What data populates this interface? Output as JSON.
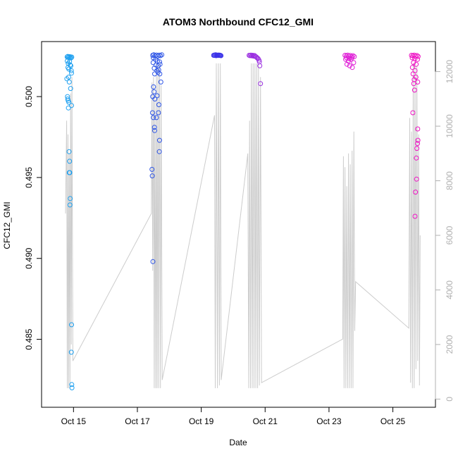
{
  "chart_data": {
    "type": "scatter",
    "title": "ATOM3 Northbound CFC12_GMI",
    "xlabel": "Date",
    "ylabel": "CFC12_GMI",
    "xlim": [
      "2016-10-14 00:00",
      "2016-10-26 08:00"
    ],
    "ylim": [
      0.4808,
      0.5034
    ],
    "y2lim": [
      -300,
      13100
    ],
    "x_ticks": [
      {
        "label": "Oct 15",
        "date": "2016-10-15"
      },
      {
        "label": "Oct 17",
        "date": "2016-10-17"
      },
      {
        "label": "Oct 19",
        "date": "2016-10-19"
      },
      {
        "label": "Oct 21",
        "date": "2016-10-21"
      },
      {
        "label": "Oct 23",
        "date": "2016-10-23"
      },
      {
        "label": "Oct 25",
        "date": "2016-10-25"
      }
    ],
    "y_ticks": [
      "0.485",
      "0.490",
      "0.495",
      "0.500"
    ],
    "y_tick_values": [
      0.485,
      0.49,
      0.495,
      0.5
    ],
    "y2_ticks": [
      "0",
      "2000",
      "4000",
      "6000",
      "8000",
      "10000",
      "12000"
    ],
    "y2_tick_values": [
      0,
      2000,
      4000,
      6000,
      8000,
      10000,
      12000
    ],
    "series": [
      {
        "color": "#1ea0f0",
        "points": [
          [
            "2016-10-14 19:12",
            0.50245
          ],
          [
            "2016-10-14 19:40",
            0.50248
          ],
          [
            "2016-10-14 20:10",
            0.50242
          ],
          [
            "2016-10-14 20:40",
            0.50247
          ],
          [
            "2016-10-14 21:10",
            0.5024
          ],
          [
            "2016-10-14 21:40",
            0.50246
          ],
          [
            "2016-10-14 22:10",
            0.50239
          ],
          [
            "2016-10-14 22:40",
            0.50244
          ],
          [
            "2016-10-14 19:20",
            0.5022
          ],
          [
            "2016-10-14 20:00",
            0.50205
          ],
          [
            "2016-10-14 21:00",
            0.50215
          ],
          [
            "2016-10-14 22:00",
            0.5019
          ],
          [
            "2016-10-14 19:50",
            0.5018
          ],
          [
            "2016-10-14 20:30",
            0.5017
          ],
          [
            "2016-10-14 21:30",
            0.50195
          ],
          [
            "2016-10-14 22:20",
            0.5016
          ],
          [
            "2016-10-14 19:00",
            0.5011
          ],
          [
            "2016-10-14 20:20",
            0.5012
          ],
          [
            "2016-10-14 22:30",
            0.50145
          ],
          [
            "2016-10-14 20:50",
            0.5009
          ],
          [
            "2016-10-14 21:50",
            0.5005
          ],
          [
            "2016-10-14 19:30",
            0.5
          ],
          [
            "2016-10-14 19:40",
            0.49985
          ],
          [
            "2016-10-14 20:00",
            0.49975
          ],
          [
            "2016-10-14 20:30",
            0.49965
          ],
          [
            "2016-10-14 22:30",
            0.49945
          ],
          [
            "2016-10-14 20:10",
            0.4993
          ],
          [
            "2016-10-14 20:40",
            0.4966
          ],
          [
            "2016-10-14 21:00",
            0.496
          ],
          [
            "2016-10-14 20:50",
            0.4953
          ],
          [
            "2016-10-14 21:10",
            0.4953
          ],
          [
            "2016-10-14 21:30",
            0.4937
          ],
          [
            "2016-10-14 21:20",
            0.4933
          ],
          [
            "2016-10-14 22:30",
            0.4859
          ],
          [
            "2016-10-14 22:20",
            0.4842
          ],
          [
            "2016-10-14 22:40",
            0.4822
          ],
          [
            "2016-10-14 22:50",
            0.482
          ]
        ]
      },
      {
        "color": "#2f56e6",
        "points": [
          [
            "2016-10-17 11:30",
            0.50255
          ],
          [
            "2016-10-17 12:20",
            0.50258
          ],
          [
            "2016-10-17 13:20",
            0.50252
          ],
          [
            "2016-10-17 14:20",
            0.50257
          ],
          [
            "2016-10-17 15:20",
            0.5025
          ],
          [
            "2016-10-17 16:20",
            0.50256
          ],
          [
            "2016-10-17 17:20",
            0.50253
          ],
          [
            "2016-10-17 18:20",
            0.50258
          ],
          [
            "2016-10-17 12:00",
            0.5024
          ],
          [
            "2016-10-17 13:40",
            0.5023
          ],
          [
            "2016-10-17 15:00",
            0.5022
          ],
          [
            "2016-10-17 16:40",
            0.50215
          ],
          [
            "2016-10-17 11:50",
            0.5021
          ],
          [
            "2016-10-17 14:00",
            0.50195
          ],
          [
            "2016-10-17 15:40",
            0.5019
          ],
          [
            "2016-10-17 17:00",
            0.502
          ],
          [
            "2016-10-17 12:40",
            0.50175
          ],
          [
            "2016-10-17 14:40",
            0.5016
          ],
          [
            "2016-10-17 16:00",
            0.50165
          ],
          [
            "2016-10-17 13:00",
            0.5014
          ],
          [
            "2016-10-17 15:30",
            0.5015
          ],
          [
            "2016-10-17 16:50",
            0.5014
          ],
          [
            "2016-10-17 17:40",
            0.5009
          ],
          [
            "2016-10-17 12:10",
            0.5006
          ],
          [
            "2016-10-17 12:30",
            0.5003
          ],
          [
            "2016-10-17 11:30",
            0.5
          ],
          [
            "2016-10-17 14:50",
            0.50005
          ],
          [
            "2016-10-17 13:10",
            0.49985
          ],
          [
            "2016-10-17 16:10",
            0.4995
          ],
          [
            "2016-10-17 11:20",
            0.499
          ],
          [
            "2016-10-17 15:50",
            0.499
          ],
          [
            "2016-10-17 12:00",
            0.4987
          ],
          [
            "2016-10-17 14:20",
            0.4987
          ],
          [
            "2016-10-17 12:50",
            0.4981
          ],
          [
            "2016-10-17 13:00",
            0.4979
          ],
          [
            "2016-10-17 16:40",
            0.4973
          ],
          [
            "2016-10-17 16:30",
            0.4966
          ],
          [
            "2016-10-17 11:00",
            0.4955
          ],
          [
            "2016-10-17 11:10",
            0.4951
          ],
          [
            "2016-10-17 11:40",
            0.4898
          ]
        ]
      },
      {
        "color": "#3b32e8",
        "points": [
          [
            "2016-10-19 09:20",
            0.50255
          ],
          [
            "2016-10-19 09:50",
            0.50257
          ],
          [
            "2016-10-19 10:20",
            0.50254
          ],
          [
            "2016-10-19 10:50",
            0.50258
          ],
          [
            "2016-10-19 11:20",
            0.50253
          ],
          [
            "2016-10-19 11:50",
            0.50256
          ],
          [
            "2016-10-19 12:20",
            0.50255
          ],
          [
            "2016-10-19 12:50",
            0.50257
          ],
          [
            "2016-10-19 13:20",
            0.50254
          ],
          [
            "2016-10-19 13:50",
            0.50256
          ],
          [
            "2016-10-19 14:20",
            0.50255
          ],
          [
            "2016-10-19 14:50",
            0.50253
          ]
        ]
      },
      {
        "color": "#9a2ee0",
        "points": [
          [
            "2016-10-20 12:00",
            0.50255
          ],
          [
            "2016-10-20 12:40",
            0.50253
          ],
          [
            "2016-10-20 13:20",
            0.50256
          ],
          [
            "2016-10-20 14:00",
            0.50252
          ],
          [
            "2016-10-20 14:40",
            0.50255
          ],
          [
            "2016-10-20 15:20",
            0.5025
          ],
          [
            "2016-10-20 16:00",
            0.50254
          ],
          [
            "2016-10-20 16:40",
            0.50248
          ],
          [
            "2016-10-20 17:20",
            0.50245
          ],
          [
            "2016-10-20 18:00",
            0.5024
          ],
          [
            "2016-10-20 18:40",
            0.50235
          ],
          [
            "2016-10-20 19:20",
            0.50225
          ],
          [
            "2016-10-20 19:40",
            0.50215
          ],
          [
            "2016-10-20 20:00",
            0.5019
          ],
          [
            "2016-10-20 20:30",
            0.5008
          ]
        ]
      },
      {
        "color": "#df1ed6",
        "points": [
          [
            "2016-10-23 12:00",
            0.50255
          ],
          [
            "2016-10-23 13:00",
            0.50252
          ],
          [
            "2016-10-23 14:00",
            0.50256
          ],
          [
            "2016-10-23 15:00",
            0.5025
          ],
          [
            "2016-10-23 16:00",
            0.50254
          ],
          [
            "2016-10-23 17:00",
            0.50248
          ],
          [
            "2016-10-23 18:00",
            0.50253
          ],
          [
            "2016-10-23 19:00",
            0.50247
          ],
          [
            "2016-10-23 12:30",
            0.5023
          ],
          [
            "2016-10-23 14:30",
            0.5022
          ],
          [
            "2016-10-23 16:30",
            0.5023
          ],
          [
            "2016-10-23 18:30",
            0.5021
          ],
          [
            "2016-10-23 13:30",
            0.502
          ],
          [
            "2016-10-23 15:30",
            0.5019
          ],
          [
            "2016-10-23 17:30",
            0.5018
          ],
          [
            "2016-10-23 13:10",
            0.5024
          ],
          [
            "2016-10-23 17:10",
            0.5024
          ],
          [
            "2016-10-23 15:10",
            0.50235
          ]
        ]
      },
      {
        "color": "#ee12c4",
        "points": [
          [
            "2016-10-25 14:00",
            0.50255
          ],
          [
            "2016-10-25 15:00",
            0.50252
          ],
          [
            "2016-10-25 16:00",
            0.50256
          ],
          [
            "2016-10-25 17:00",
            0.5025
          ],
          [
            "2016-10-25 18:00",
            0.50254
          ],
          [
            "2016-10-25 19:00",
            0.50248
          ],
          [
            "2016-10-25 14:30",
            0.5024
          ],
          [
            "2016-10-25 16:30",
            0.50235
          ],
          [
            "2016-10-25 18:30",
            0.5023
          ],
          [
            "2016-10-25 15:30",
            0.5021
          ],
          [
            "2016-10-25 17:30",
            0.502
          ],
          [
            "2016-10-25 14:40",
            0.5018
          ],
          [
            "2016-10-25 16:40",
            0.5016
          ],
          [
            "2016-10-25 15:10",
            0.5014
          ],
          [
            "2016-10-25 17:20",
            0.5012
          ],
          [
            "2016-10-25 16:00",
            0.50105
          ],
          [
            "2016-10-25 18:40",
            0.5009
          ],
          [
            "2016-10-25 15:40",
            0.5008
          ],
          [
            "2016-10-25 16:20",
            0.5004
          ],
          [
            "2016-10-25 15:00",
            0.499
          ],
          [
            "2016-10-25 18:40",
            0.498
          ],
          [
            "2016-10-25 18:50",
            0.4973
          ],
          [
            "2016-10-25 18:30",
            0.4971
          ],
          [
            "2016-10-25 18:00",
            0.4968
          ],
          [
            "2016-10-25 17:40",
            0.4962
          ],
          [
            "2016-10-25 17:50",
            0.4949
          ],
          [
            "2016-10-25 17:00",
            0.4941
          ],
          [
            "2016-10-25 16:40",
            0.4926
          ]
        ]
      }
    ],
    "altitude_trace": {
      "color": "#cccccc",
      "axis": "right",
      "points": [
        [
          "2016-10-14 18:00",
          6800
        ],
        [
          "2016-10-14 18:50",
          10200
        ],
        [
          "2016-10-14 19:20",
          400
        ],
        [
          "2016-10-14 19:50",
          9700
        ],
        [
          "2016-10-14 20:20",
          400
        ],
        [
          "2016-10-14 20:50",
          9000
        ],
        [
          "2016-10-14 21:20",
          400
        ],
        [
          "2016-10-14 21:50",
          11200
        ],
        [
          "2016-10-14 22:20",
          2000
        ],
        [
          "2016-10-14 22:50",
          11800
        ],
        [
          "2016-10-14 23:30",
          1400
        ],
        [
          "2016-10-17 10:30",
          6800
        ],
        [
          "2016-10-17 11:00",
          11600
        ],
        [
          "2016-10-17 11:30",
          4700
        ],
        [
          "2016-10-17 12:10",
          11800
        ],
        [
          "2016-10-17 12:40",
          400
        ],
        [
          "2016-10-17 13:10",
          11000
        ],
        [
          "2016-10-17 13:50",
          400
        ],
        [
          "2016-10-17 14:20",
          12300
        ],
        [
          "2016-10-17 14:50",
          400
        ],
        [
          "2016-10-17 15:30",
          12300
        ],
        [
          "2016-10-17 16:00",
          400
        ],
        [
          "2016-10-17 16:40",
          12300
        ],
        [
          "2016-10-17 17:20",
          400
        ],
        [
          "2016-10-17 17:50",
          11500
        ],
        [
          "2016-10-17 18:40",
          700
        ],
        [
          "2016-10-19 10:00",
          10400
        ],
        [
          "2016-10-19 10:30",
          400
        ],
        [
          "2016-10-19 11:20",
          12300
        ],
        [
          "2016-10-19 12:10",
          400
        ],
        [
          "2016-10-19 12:50",
          12300
        ],
        [
          "2016-10-19 13:40",
          500
        ],
        [
          "2016-10-19 14:20",
          12300
        ],
        [
          "2016-10-19 15:00",
          700
        ],
        [
          "2016-10-20 11:00",
          9000
        ],
        [
          "2016-10-20 11:40",
          400
        ],
        [
          "2016-10-20 12:20",
          10200
        ],
        [
          "2016-10-20 13:00",
          400
        ],
        [
          "2016-10-20 13:40",
          12300
        ],
        [
          "2016-10-20 14:20",
          400
        ],
        [
          "2016-10-20 15:00",
          12300
        ],
        [
          "2016-10-20 15:40",
          400
        ],
        [
          "2016-10-20 16:20",
          12300
        ],
        [
          "2016-10-20 17:00",
          400
        ],
        [
          "2016-10-20 17:40",
          12300
        ],
        [
          "2016-10-20 18:20",
          400
        ],
        [
          "2016-10-20 19:00",
          12300
        ],
        [
          "2016-10-20 19:40",
          500
        ],
        [
          "2016-10-20 20:30",
          11800
        ],
        [
          "2016-10-20 21:20",
          600
        ],
        [
          "2016-10-23 10:20",
          2200
        ],
        [
          "2016-10-23 10:50",
          8900
        ],
        [
          "2016-10-23 11:20",
          400
        ],
        [
          "2016-10-23 12:00",
          8500
        ],
        [
          "2016-10-23 12:40",
          400
        ],
        [
          "2016-10-23 13:20",
          7800
        ],
        [
          "2016-10-23 14:00",
          400
        ],
        [
          "2016-10-23 14:40",
          9000
        ],
        [
          "2016-10-23 15:20",
          400
        ],
        [
          "2016-10-23 16:00",
          8600
        ],
        [
          "2016-10-23 16:40",
          400
        ],
        [
          "2016-10-23 17:20",
          9100
        ],
        [
          "2016-10-23 18:00",
          400
        ],
        [
          "2016-10-23 18:40",
          9800
        ],
        [
          "2016-10-23 19:20",
          2500
        ],
        [
          "2016-10-23 20:00",
          4300
        ],
        [
          "2016-10-25 12:00",
          2600
        ],
        [
          "2016-10-25 12:40",
          10300
        ],
        [
          "2016-10-25 13:20",
          600
        ],
        [
          "2016-10-25 14:00",
          9800
        ],
        [
          "2016-10-25 14:40",
          400
        ],
        [
          "2016-10-25 15:20",
          12300
        ],
        [
          "2016-10-25 16:00",
          400
        ],
        [
          "2016-10-25 16:40",
          12300
        ],
        [
          "2016-10-25 17:20",
          1100
        ],
        [
          "2016-10-25 18:00",
          12200
        ],
        [
          "2016-10-25 18:40",
          1400
        ],
        [
          "2016-10-25 19:20",
          9700
        ],
        [
          "2016-10-25 20:00",
          500
        ],
        [
          "2016-10-25 20:30",
          6000
        ]
      ]
    },
    "grid": false,
    "legend": "none"
  }
}
